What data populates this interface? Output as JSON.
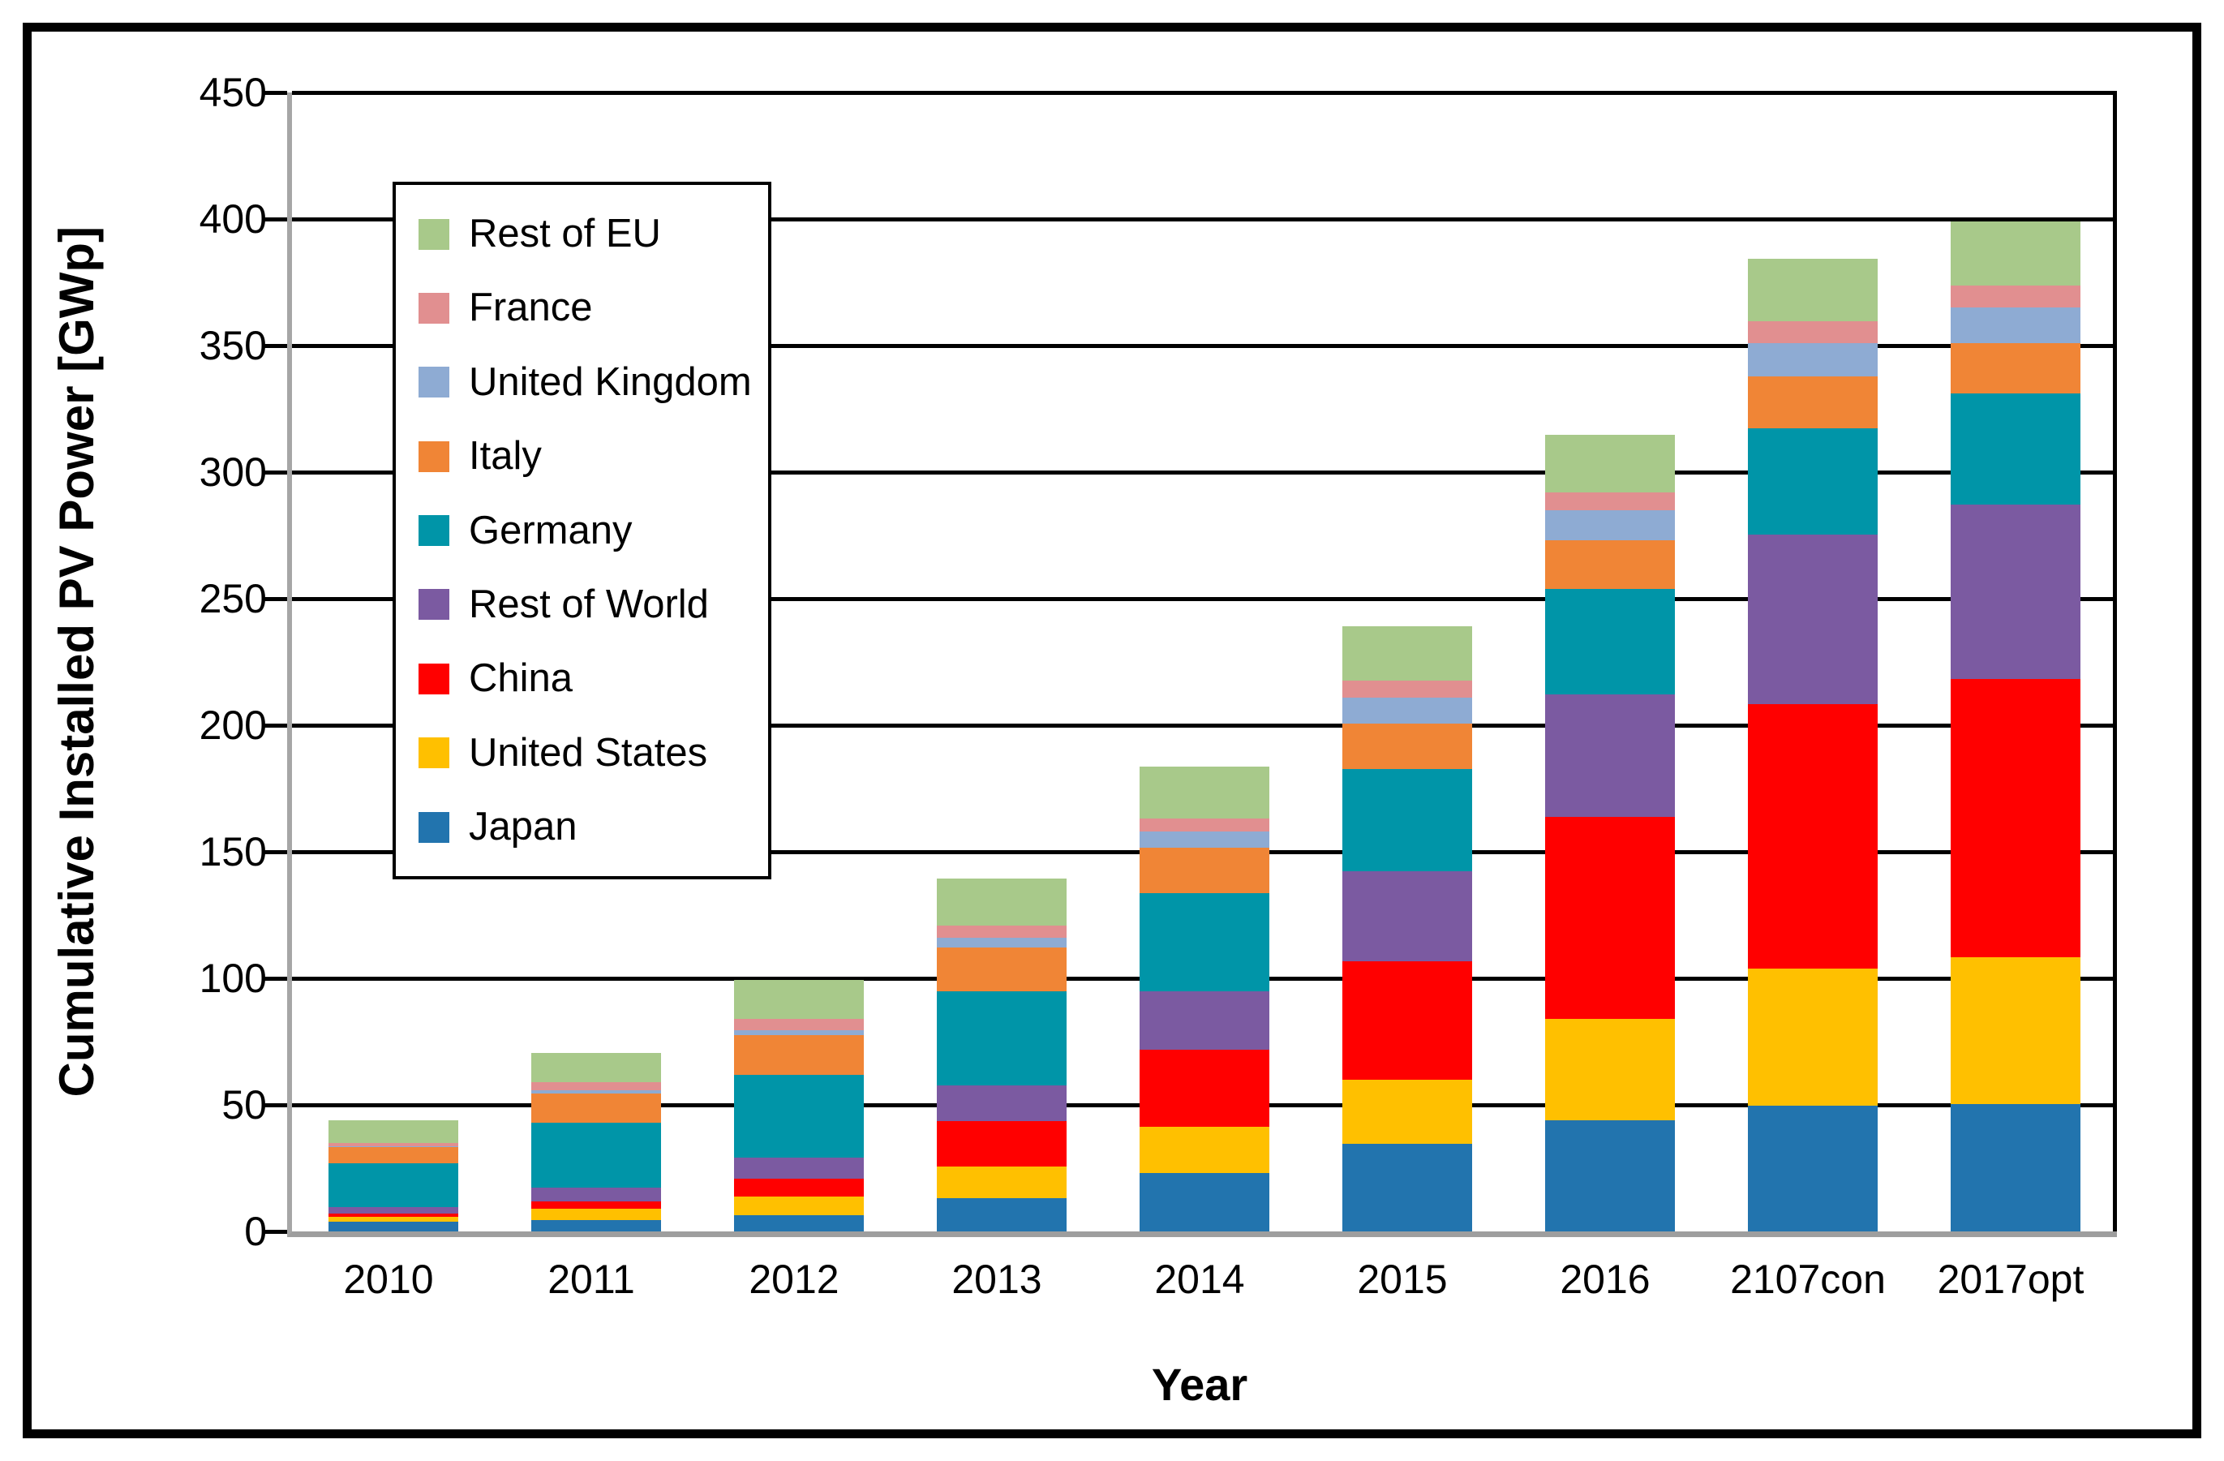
{
  "figure": {
    "y_axis_title": "Cumulative Installed PV Power [GWp]",
    "x_axis_title": "Year"
  },
  "chart_data": {
    "type": "bar",
    "stacked": true,
    "xlabel": "Year",
    "ylabel": "Cumulative Installed PV Power [GWp]",
    "grid": true,
    "legend_position": "upper-left-inside",
    "categories": [
      "2010",
      "2011",
      "2012",
      "2013",
      "2014",
      "2015",
      "2016",
      "2107con",
      "2017opt"
    ],
    "y_axis": {
      "min": 0,
      "max": 450,
      "step": 50,
      "tick_labels": [
        "0",
        "50",
        "100",
        "150",
        "200",
        "250",
        "300",
        "350",
        "400",
        "450"
      ]
    },
    "stack_order_bottom_to_top": [
      "Japan",
      "United States",
      "China",
      "Rest of World",
      "Germany",
      "Italy",
      "United Kingdom",
      "France",
      "Rest of EU"
    ],
    "series": [
      {
        "name": "Rest of EU",
        "color": "#A8C98A",
        "values": [
          8.8,
          11.7,
          15.4,
          18.8,
          20.5,
          21.4,
          22.9,
          24.8,
          25.2
        ]
      },
      {
        "name": "France",
        "color": "#E18F90",
        "values": [
          1.5,
          3.1,
          4.5,
          4.9,
          5.4,
          6.9,
          7.2,
          8.5,
          8.9
        ]
      },
      {
        "name": "United Kingdom",
        "color": "#8EABD3",
        "values": [
          0.1,
          1.2,
          1.9,
          3.7,
          6.4,
          10.0,
          11.8,
          13.2,
          13.9
        ]
      },
      {
        "name": "Italy",
        "color": "#F08536",
        "values": [
          6.5,
          11.7,
          15.6,
          17.4,
          17.9,
          18.1,
          19.2,
          20.7,
          19.9
        ]
      },
      {
        "name": "Germany",
        "color": "#0095A8",
        "values": [
          17.3,
          25.6,
          32.8,
          37.1,
          38.6,
          40.5,
          41.6,
          41.8,
          43.9
        ]
      },
      {
        "name": "Rest of World",
        "color": "#7B5AA1",
        "values": [
          2.7,
          5.3,
          8.5,
          14.1,
          23.2,
          35.3,
          48.4,
          66.9,
          68.9
        ]
      },
      {
        "name": "China",
        "color": "#FF0000",
        "values": [
          1.1,
          3.1,
          7.0,
          18.0,
          30.5,
          47.1,
          79.8,
          104.6,
          110.1
        ]
      },
      {
        "name": "United States",
        "color": "#FFC000",
        "values": [
          1.9,
          4.3,
          7.3,
          12.5,
          18.1,
          25.3,
          40.2,
          54.2,
          58.1
        ]
      },
      {
        "name": "Japan",
        "color": "#2274AE",
        "values": [
          4.0,
          4.6,
          6.4,
          13.1,
          23.2,
          34.5,
          43.8,
          49.7,
          50.2
        ]
      }
    ]
  }
}
